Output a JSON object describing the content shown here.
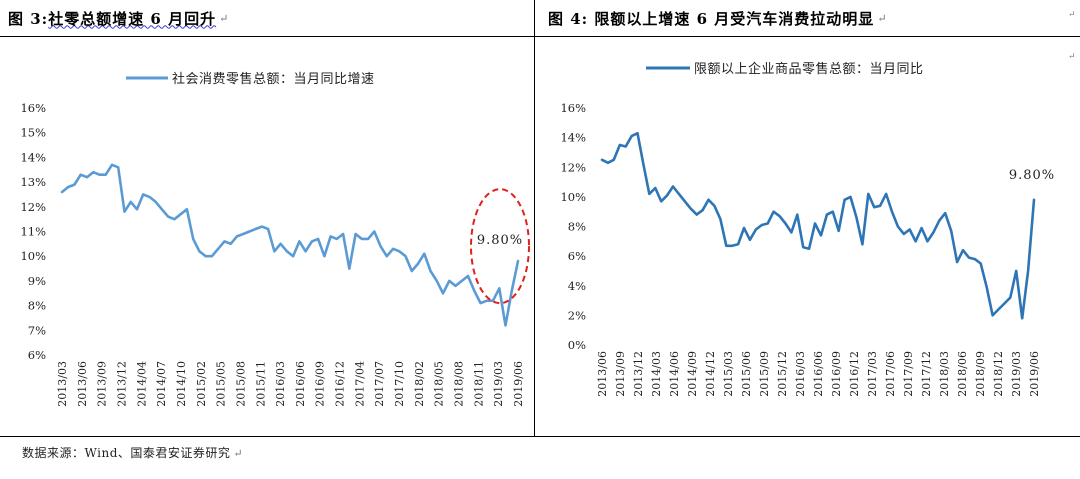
{
  "figures": {
    "left_title": "图 3: 社零总额增速 6 月回升",
    "left_title_prefix": "图 3: ",
    "left_title_main": "社零总额增速 6 月回升",
    "right_title": "图 4: 限额以上增速 6 月受汽车消费拉动明显",
    "para_mark": "↵"
  },
  "source": "数据来源：Wind、国泰君安证券研究",
  "chart_data": [
    {
      "type": "line",
      "title": "",
      "legend": [
        "社会消费零售总额：当月同比增速"
      ],
      "legend_placement": "top",
      "series": [
        {
          "name": "社会消费零售总额：当月同比增速",
          "color": "#5b9bd5",
          "values": [
            12.6,
            12.8,
            12.9,
            13.3,
            13.2,
            13.4,
            13.3,
            13.3,
            13.7,
            13.6,
            11.8,
            12.2,
            11.9,
            12.5,
            12.4,
            12.2,
            11.9,
            11.6,
            11.5,
            11.7,
            11.9,
            10.7,
            10.2,
            10.0,
            10.0,
            10.3,
            10.6,
            10.5,
            10.8,
            10.9,
            11.0,
            11.1,
            11.2,
            11.1,
            10.2,
            10.5,
            10.2,
            10.0,
            10.6,
            10.2,
            10.6,
            10.7,
            10.0,
            10.8,
            10.7,
            10.9,
            9.5,
            10.9,
            10.7,
            10.7,
            11.0,
            10.4,
            10.0,
            10.3,
            10.2,
            10.0,
            9.4,
            9.7,
            10.1,
            9.4,
            9.0,
            8.5,
            9.0,
            8.8,
            9.0,
            9.2,
            8.6,
            8.1,
            8.2,
            8.2,
            8.7,
            7.2,
            8.6,
            9.8
          ]
        }
      ],
      "x_start": "2013/03",
      "x_end": "2019/06",
      "tick_labels": [
        "2013/03",
        "2013/06",
        "2013/09",
        "2013/12",
        "2014/04",
        "2014/07",
        "2014/10",
        "2015/02",
        "2015/05",
        "2015/08",
        "2015/11",
        "2016/03",
        "2016/06",
        "2016/09",
        "2016/12",
        "2017/04",
        "2017/07",
        "2017/10",
        "2018/02",
        "2018/05",
        "2018/08",
        "2018/11",
        "2019/03",
        "2019/06"
      ],
      "ylim": [
        6,
        16
      ],
      "yticks": [
        "6%",
        "7%",
        "8%",
        "9%",
        "10%",
        "11%",
        "12%",
        "13%",
        "14%",
        "15%",
        "16%"
      ],
      "annotation": "9.80%",
      "annotation_style": "red dashed ellipse around the last point",
      "grid": false
    },
    {
      "type": "line",
      "title": "",
      "legend": [
        "限额以上企业商品零售总额：当月同比"
      ],
      "legend_placement": "top",
      "series": [
        {
          "name": "限额以上企业商品零售总额：当月同比",
          "color": "#2e75b6",
          "values": [
            12.5,
            12.3,
            12.5,
            13.5,
            13.4,
            14.1,
            14.3,
            12.2,
            10.2,
            10.6,
            9.7,
            10.1,
            10.7,
            10.2,
            9.7,
            9.2,
            8.8,
            9.1,
            9.8,
            9.4,
            8.5,
            6.7,
            6.7,
            6.8,
            7.9,
            7.1,
            7.8,
            8.1,
            8.2,
            9.0,
            8.7,
            8.2,
            7.6,
            8.8,
            6.6,
            6.5,
            8.2,
            7.4,
            8.8,
            9.0,
            7.7,
            9.8,
            10.0,
            8.6,
            6.8,
            10.2,
            9.3,
            9.4,
            10.2,
            9.0,
            8.0,
            7.5,
            7.8,
            7.0,
            7.9,
            7.0,
            7.6,
            8.4,
            8.9,
            7.7,
            5.6,
            6.4,
            5.9,
            5.8,
            5.5,
            3.9,
            2.0,
            2.4,
            2.8,
            3.2,
            5.0,
            1.8,
            5.0,
            9.8
          ]
        }
      ],
      "x_start": "2013/06",
      "x_end": "2019/06",
      "tick_labels": [
        "2013/06",
        "2013/09",
        "2013/12",
        "2014/03",
        "2014/06",
        "2014/09",
        "2014/12",
        "2015/03",
        "2015/06",
        "2015/09",
        "2015/12",
        "2016/03",
        "2016/06",
        "2016/09",
        "2016/12",
        "2017/03",
        "2017/06",
        "2017/09",
        "2017/12",
        "2018/03",
        "2018/06",
        "2018/09",
        "2018/12",
        "2019/03",
        "2019/06"
      ],
      "ylim": [
        0,
        16
      ],
      "yticks": [
        "0%",
        "2%",
        "4%",
        "6%",
        "8%",
        "10%",
        "12%",
        "14%",
        "16%"
      ],
      "annotation": "9.80%",
      "grid": false
    }
  ]
}
